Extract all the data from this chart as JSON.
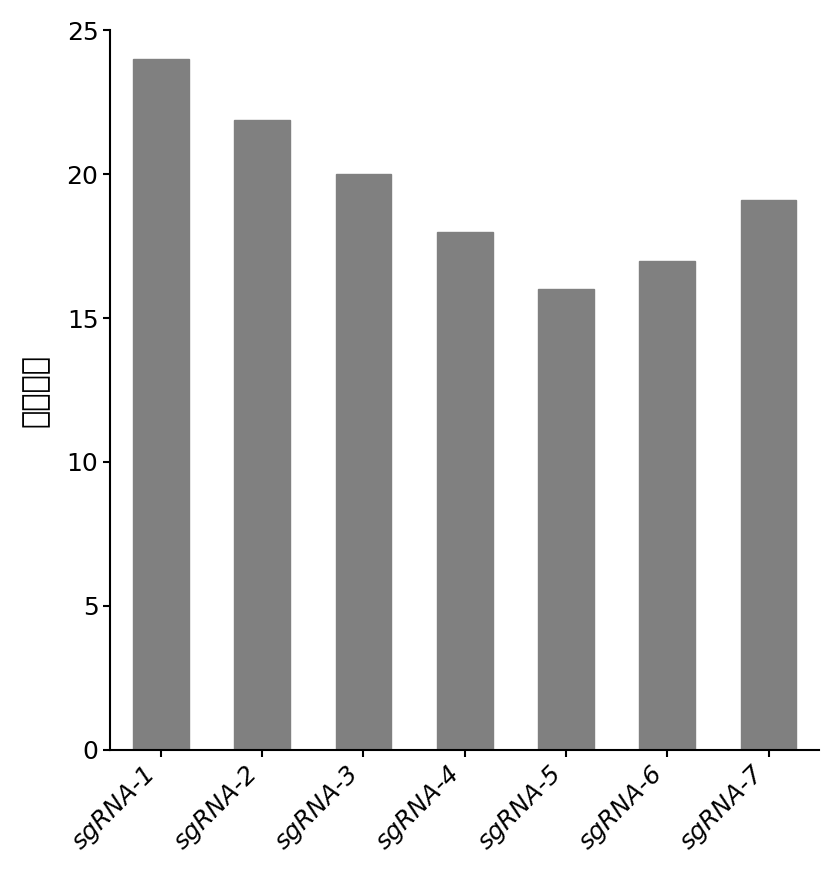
{
  "categories": [
    "sgRNA-1",
    "sgRNA-2",
    "sgRNA-3",
    "sgRNA-4",
    "sgRNA-5",
    "sgRNA-6",
    "sgRNA-7"
  ],
  "values": [
    24.0,
    21.9,
    20.0,
    18.0,
    16.0,
    17.0,
    19.1
  ],
  "bar_color": "#808080",
  "ylabel": "修复效率",
  "ylim": [
    0,
    25
  ],
  "yticks": [
    0,
    5,
    10,
    15,
    20,
    25
  ],
  "background_color": "#ffffff",
  "bar_width": 0.55,
  "ylabel_fontsize": 22,
  "tick_fontsize": 18,
  "xtick_fontsize": 18
}
